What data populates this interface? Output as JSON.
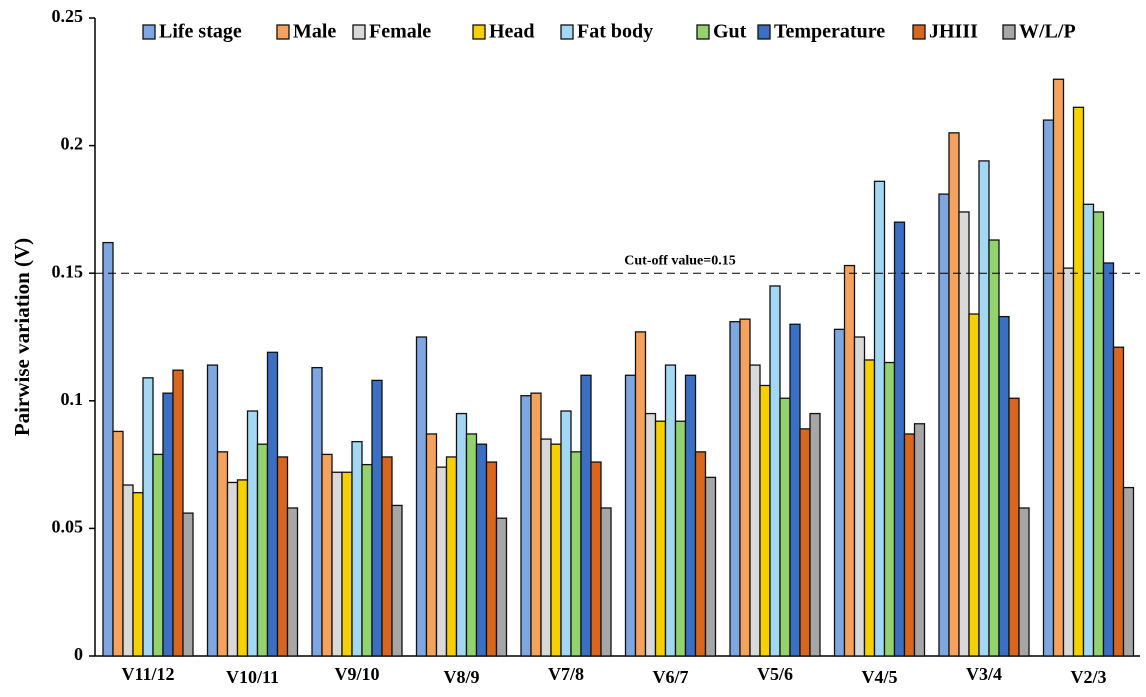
{
  "chart_data": {
    "type": "bar",
    "ylabel": "Pairwise variation (V)",
    "categories": [
      "V11/12",
      "V10/11",
      "V9/10",
      "V8/9",
      "V7/8",
      "V6/7",
      "V5/6",
      "V4/5",
      "V3/4",
      "V2/3"
    ],
    "series": [
      {
        "name": "Life stage",
        "color": "#7ea6e0",
        "values": [
          0.162,
          0.114,
          0.113,
          0.125,
          0.102,
          0.11,
          0.131,
          0.128,
          0.181,
          0.21
        ]
      },
      {
        "name": "Male",
        "color": "#f5a35c",
        "values": [
          0.088,
          0.08,
          0.079,
          0.087,
          0.103,
          0.127,
          0.132,
          0.153,
          0.205,
          0.226
        ]
      },
      {
        "name": "Female",
        "color": "#d9d9d9",
        "values": [
          0.067,
          0.068,
          0.072,
          0.074,
          0.085,
          0.095,
          0.114,
          0.125,
          0.174,
          0.152
        ]
      },
      {
        "name": "Head",
        "color": "#f7d000",
        "values": [
          0.064,
          0.069,
          0.072,
          0.078,
          0.083,
          0.092,
          0.106,
          0.116,
          0.134,
          0.215
        ]
      },
      {
        "name": "Fat body",
        "color": "#a3d8f4",
        "values": [
          0.109,
          0.096,
          0.084,
          0.095,
          0.096,
          0.114,
          0.145,
          0.186,
          0.194,
          0.177
        ]
      },
      {
        "name": "Gut",
        "color": "#92d36e",
        "values": [
          0.079,
          0.083,
          0.075,
          0.087,
          0.08,
          0.092,
          0.101,
          0.115,
          0.163,
          0.174
        ]
      },
      {
        "name": "Temperature",
        "color": "#3a6fc4",
        "values": [
          0.103,
          0.119,
          0.108,
          0.083,
          0.11,
          0.11,
          0.13,
          0.17,
          0.133,
          0.154
        ]
      },
      {
        "name": "JHIII",
        "color": "#d9661e",
        "values": [
          0.112,
          0.078,
          0.078,
          0.076,
          0.076,
          0.08,
          0.089,
          0.087,
          0.101,
          0.121
        ]
      },
      {
        "name": "W/L/P",
        "color": "#a6a6a6",
        "values": [
          0.056,
          0.058,
          0.059,
          0.054,
          0.058,
          0.07,
          0.095,
          0.091,
          0.058,
          0.066
        ]
      }
    ],
    "ylim": [
      0,
      0.25
    ],
    "yticks": [
      0,
      0.05,
      0.1,
      0.15,
      0.2,
      0.25
    ],
    "cutoff": 0.15,
    "cutoff_label": "Cut-off value=0.15",
    "grid": false
  }
}
